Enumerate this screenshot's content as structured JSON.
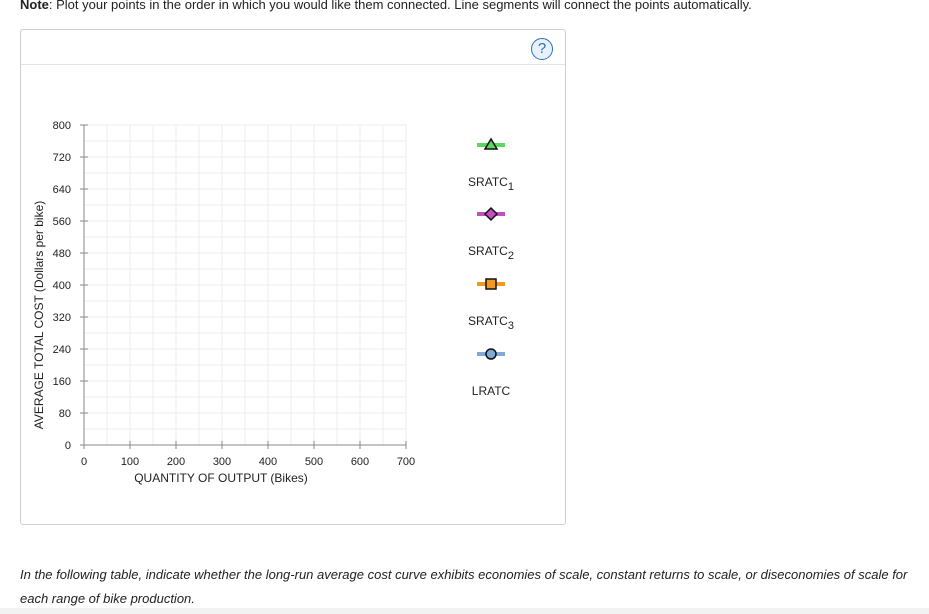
{
  "note": {
    "prefix": "Note",
    "text": ": Plot your points in the order in which you would like them connected. Line segments will connect the points automatically."
  },
  "help_glyph": "?",
  "chart_data": {
    "type": "scatter",
    "title": "",
    "xlabel": "QUANTITY OF OUTPUT (Bikes)",
    "ylabel": "AVERAGE TOTAL COST (Dollars per bike)",
    "xlim": [
      0,
      700
    ],
    "ylim": [
      0,
      800
    ],
    "x_ticks": [
      "0",
      "100",
      "200",
      "300",
      "400",
      "500",
      "600",
      "700"
    ],
    "y_ticks": [
      "0",
      "80",
      "160",
      "240",
      "320",
      "400",
      "480",
      "560",
      "640",
      "720",
      "800"
    ],
    "grid": true,
    "series": []
  },
  "legend": [
    {
      "name": "SRATC",
      "sub": "1",
      "marker": "triangle",
      "color": "#5cd65c"
    },
    {
      "name": "SRATC",
      "sub": "2",
      "marker": "diamond",
      "color": "#c44fc4"
    },
    {
      "name": "SRATC",
      "sub": "3",
      "marker": "square",
      "color": "#f29a1f"
    },
    {
      "name": "LRATC",
      "sub": "",
      "marker": "circle",
      "color": "#7fa9d6"
    }
  ],
  "instruction": "In the following table, indicate whether the long-run average cost curve exhibits economies of scale, constant returns to scale, or diseconomies of scale for each range of bike production."
}
